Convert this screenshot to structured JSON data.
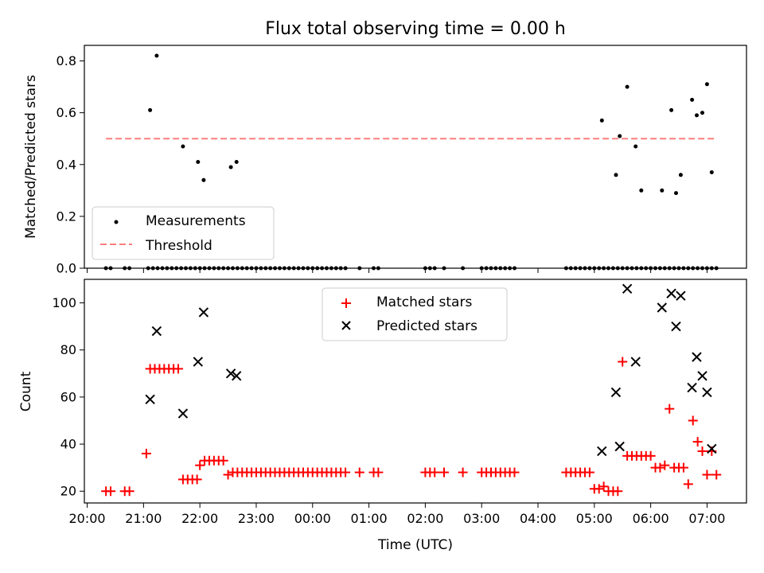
{
  "chart_data": [
    {
      "type": "scatter",
      "title": "Flux total observing time = 0.00 h",
      "xlabel": "",
      "ylabel": "Matched/Predicted stars",
      "ylim": [
        0,
        0.86
      ],
      "yticks": [
        "0.0",
        "0.2",
        "0.4",
        "0.6",
        "0.8"
      ],
      "legend": "lower-left",
      "series": [
        {
          "name": "Measurements",
          "marker": "dot",
          "color": "#000000",
          "x": [
            "20:20",
            "20:25",
            "20:40",
            "20:45",
            "21:05",
            "21:10",
            "21:15",
            "21:20",
            "21:25",
            "21:30",
            "21:35",
            "21:40",
            "21:45",
            "21:50",
            "21:55",
            "22:00",
            "22:05",
            "22:10",
            "22:15",
            "22:20",
            "22:25",
            "22:30",
            "22:35",
            "22:40",
            "22:45",
            "22:50",
            "22:55",
            "23:00",
            "23:05",
            "23:10",
            "23:15",
            "23:20",
            "23:25",
            "23:30",
            "23:35",
            "23:40",
            "23:45",
            "23:50",
            "23:55",
            "00:00",
            "00:05",
            "00:10",
            "00:15",
            "00:20",
            "00:25",
            "00:30",
            "00:35",
            "00:50",
            "01:05",
            "01:10",
            "02:00",
            "02:05",
            "02:10",
            "02:20",
            "02:40",
            "03:00",
            "03:05",
            "03:10",
            "03:15",
            "03:20",
            "03:25",
            "03:30",
            "03:35",
            "04:30",
            "04:35",
            "04:40",
            "04:45",
            "04:50",
            "04:55",
            "05:00",
            "05:05",
            "05:10",
            "05:15",
            "05:20",
            "05:25",
            "05:30",
            "05:35",
            "05:40",
            "05:45",
            "05:50",
            "05:55",
            "06:00",
            "06:05",
            "06:10",
            "06:15",
            "06:20",
            "06:25",
            "06:30",
            "06:35",
            "06:40",
            "06:45",
            "06:50",
            "06:55",
            "07:00",
            "07:05",
            "07:10",
            "21:07",
            "21:14",
            "21:42",
            "21:58",
            "22:04",
            "22:33",
            "22:39",
            "05:08",
            "05:23",
            "05:27",
            "05:35",
            "05:44",
            "05:50",
            "06:12",
            "06:22",
            "06:27",
            "06:32",
            "06:44",
            "06:49",
            "06:55",
            "07:00",
            "07:05"
          ],
          "y": [
            0,
            0,
            0,
            0,
            0,
            0,
            0,
            0,
            0,
            0,
            0,
            0,
            0,
            0,
            0,
            0,
            0,
            0,
            0,
            0,
            0,
            0,
            0,
            0,
            0,
            0,
            0,
            0,
            0,
            0,
            0,
            0,
            0,
            0,
            0,
            0,
            0,
            0,
            0,
            0,
            0,
            0,
            0,
            0,
            0,
            0,
            0,
            0,
            0,
            0,
            0,
            0,
            0,
            0,
            0,
            0,
            0,
            0,
            0,
            0,
            0,
            0,
            0,
            0,
            0,
            0,
            0,
            0,
            0,
            0,
            0,
            0,
            0,
            0,
            0,
            0,
            0,
            0,
            0,
            0,
            0,
            0,
            0,
            0,
            0,
            0,
            0,
            0,
            0,
            0,
            0,
            0,
            0,
            0,
            0,
            0,
            0.61,
            0.82,
            0.47,
            0.41,
            0.34,
            0.39,
            0.41,
            0.57,
            0.36,
            0.51,
            0.7,
            0.47,
            0.3,
            0.3,
            0.61,
            0.29,
            0.36,
            0.65,
            0.59,
            0.6,
            0.71,
            0.37
          ]
        },
        {
          "name": "Threshold",
          "marker": "dashed-line",
          "color": "#ff7f7f",
          "x": [
            "20:20",
            "07:10"
          ],
          "y": [
            0.5,
            0.5
          ]
        }
      ]
    },
    {
      "type": "scatter",
      "title": "",
      "xlabel": "Time (UTC)",
      "ylabel": "Count",
      "ylim": [
        15,
        110
      ],
      "yticks": [
        "20",
        "40",
        "60",
        "80",
        "100"
      ],
      "x_ticks": [
        "20:00",
        "21:00",
        "22:00",
        "23:00",
        "00:00",
        "01:00",
        "02:00",
        "03:00",
        "04:00",
        "05:00",
        "06:00",
        "07:00"
      ],
      "legend": "upper-center",
      "series": [
        {
          "name": "Matched stars",
          "marker": "plus",
          "color": "#ff0000",
          "x": [
            "20:20",
            "20:25",
            "20:40",
            "20:45",
            "21:03",
            "21:07",
            "21:12",
            "21:17",
            "21:22",
            "21:27",
            "21:32",
            "21:37",
            "21:42",
            "21:47",
            "21:52",
            "21:57",
            "22:00",
            "22:05",
            "22:10",
            "22:15",
            "22:20",
            "22:25",
            "22:30",
            "22:35",
            "22:40",
            "22:45",
            "22:50",
            "22:55",
            "23:00",
            "23:05",
            "23:10",
            "23:15",
            "23:20",
            "23:25",
            "23:30",
            "23:35",
            "23:40",
            "23:45",
            "23:50",
            "23:55",
            "00:00",
            "00:05",
            "00:10",
            "00:15",
            "00:20",
            "00:25",
            "00:30",
            "00:35",
            "00:50",
            "01:05",
            "01:10",
            "02:00",
            "02:05",
            "02:10",
            "02:20",
            "02:40",
            "03:00",
            "03:05",
            "03:10",
            "03:15",
            "03:20",
            "03:25",
            "03:30",
            "03:35",
            "04:30",
            "04:35",
            "04:40",
            "04:45",
            "04:50",
            "04:55",
            "05:00",
            "05:05",
            "05:10",
            "05:15",
            "05:20",
            "05:25",
            "05:30",
            "05:35",
            "05:40",
            "05:45",
            "05:50",
            "05:55",
            "06:00",
            "06:05",
            "06:10",
            "06:15",
            "06:20",
            "06:25",
            "06:30",
            "06:35",
            "06:40",
            "06:45",
            "06:50",
            "06:55",
            "07:00",
            "07:05",
            "07:10"
          ],
          "y": [
            20,
            20,
            20,
            20,
            36,
            72,
            72,
            72,
            72,
            72,
            72,
            72,
            25,
            25,
            25,
            25,
            31,
            33,
            33,
            33,
            33,
            33,
            27,
            28,
            28,
            28,
            28,
            28,
            28,
            28,
            28,
            28,
            28,
            28,
            28,
            28,
            28,
            28,
            28,
            28,
            28,
            28,
            28,
            28,
            28,
            28,
            28,
            28,
            28,
            28,
            28,
            28,
            28,
            28,
            28,
            28,
            28,
            28,
            28,
            28,
            28,
            28,
            28,
            28,
            28,
            28,
            28,
            28,
            28,
            28,
            21,
            21,
            22,
            20,
            20,
            20,
            75,
            35,
            35,
            35,
            35,
            35,
            35,
            30,
            30,
            31,
            55,
            30,
            30,
            30,
            23,
            50,
            41,
            37,
            27,
            37,
            27
          ]
        },
        {
          "name": "Predicted stars",
          "marker": "x",
          "color": "#000000",
          "x": [
            "21:07",
            "21:14",
            "21:42",
            "21:58",
            "22:04",
            "22:33",
            "22:39",
            "05:08",
            "05:23",
            "05:27",
            "05:35",
            "05:44",
            "06:12",
            "06:22",
            "06:27",
            "06:32",
            "06:44",
            "06:49",
            "06:55",
            "07:00",
            "07:05"
          ],
          "y": [
            59,
            88,
            53,
            75,
            96,
            70,
            69,
            37,
            62,
            39,
            106,
            75,
            98,
            104,
            90,
            103,
            64,
            77,
            69,
            62,
            38
          ]
        }
      ]
    }
  ]
}
